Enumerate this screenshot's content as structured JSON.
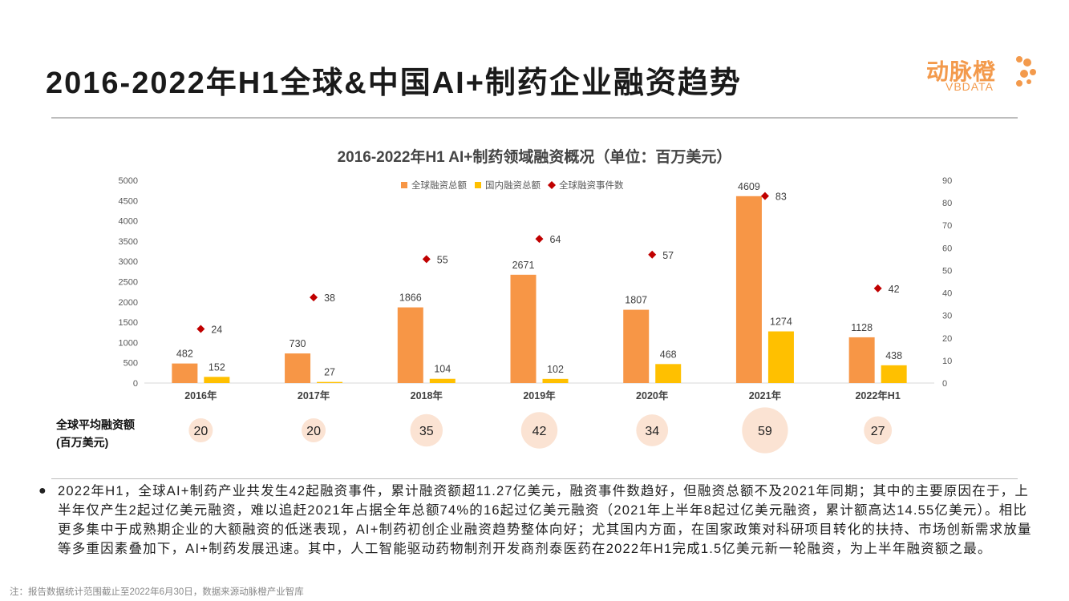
{
  "page_title": "2016-2022年H1全球&中国AI+制药企业融资趋势",
  "logo": {
    "cn": "动脉橙",
    "en": "VBDATA"
  },
  "chart_data": {
    "type": "bar",
    "title": "2016-2022年H1 AI+制药领域融资概况（单位：百万美元）",
    "categories": [
      "2016年",
      "2017年",
      "2018年",
      "2019年",
      "2020年",
      "2021年",
      "2022年H1"
    ],
    "series": [
      {
        "name": "全球融资总额",
        "type": "bar",
        "axis": "left",
        "color": "#F79646",
        "values": [
          482,
          730,
          1866,
          2671,
          1807,
          4609,
          1128
        ],
        "labels": [
          "482",
          "730",
          "1866",
          "2671",
          "1807",
          "4609",
          "1128"
        ]
      },
      {
        "name": "国内融资总额",
        "type": "bar",
        "axis": "left",
        "color": "#FFC000",
        "values": [
          152,
          27,
          104,
          102,
          468,
          1274,
          438
        ],
        "labels": [
          "152",
          "27",
          "104",
          "102",
          "468",
          "1274",
          "438"
        ]
      },
      {
        "name": "全球融资事件数",
        "type": "scatter",
        "axis": "right",
        "color": "#C00000",
        "values": [
          24,
          38,
          55,
          64,
          57,
          83,
          42
        ],
        "labels": [
          "24",
          "38",
          "55",
          "64",
          "57",
          "83",
          "42"
        ]
      }
    ],
    "y_left": {
      "min": 0,
      "max": 5000,
      "ticks": [
        "0",
        "500",
        "1000",
        "1500",
        "2000",
        "2500",
        "3000",
        "3500",
        "4000",
        "4500",
        "5000"
      ]
    },
    "y_right": {
      "min": 0,
      "max": 90,
      "ticks": [
        "0",
        "10",
        "20",
        "30",
        "40",
        "50",
        "60",
        "70",
        "80",
        "90"
      ]
    },
    "legend_position": "top",
    "avg_row": {
      "label_line1": "全球平均融资额",
      "label_line2": "(百万美元)",
      "values": [
        20,
        20,
        35,
        42,
        34,
        59,
        27
      ],
      "labels": [
        "20",
        "20",
        "35",
        "42",
        "34",
        "59",
        "27"
      ],
      "bubble_color": "#FBE3D3"
    }
  },
  "paragraph": "2022年H1，全球AI+制药产业共发生42起融资事件，累计融资额超11.27亿美元，融资事件数趋好，但融资总额不及2021年同期；其中的主要原因在于，上半年仅产生2起过亿美元融资，难以追赶2021年占据全年总额74%的16起过亿美元融资（2021年上半年8起过亿美元融资，累计额高达14.55亿美元）。相比更多集中于成熟期企业的大额融资的低迷表现，AI+制药初创企业融资趋势整体向好；尤其国内方面，在国家政策对科研项目转化的扶持、市场创新需求放量等多重因素叠加下，AI+制药发展迅速。其中，人工智能驱动药物制剂开发商剂泰医药在2022年H1完成1.5亿美元新一轮融资，为上半年融资额之最。",
  "footnote": "注：报告数据统计范围截止至2022年6月30日，数据来源动脉橙产业智库",
  "bullet_symbol": "●"
}
